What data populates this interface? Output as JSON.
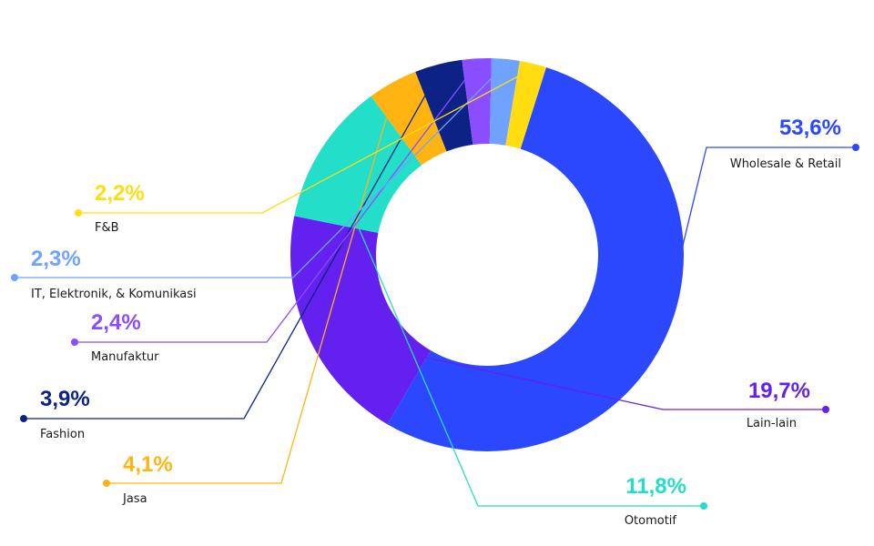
{
  "chart_data": {
    "type": "pie",
    "variant": "donut",
    "title": "",
    "slices": [
      {
        "label": "Wholesale & Retail",
        "value": 53.6,
        "value_label": "53,6%",
        "color": "#2b48ff"
      },
      {
        "label": "Lain-lain",
        "value": 19.7,
        "value_label": "19,7%",
        "color": "#6320ee"
      },
      {
        "label": "Otomotif",
        "value": 11.8,
        "value_label": "11,8%",
        "color": "#23dec8"
      },
      {
        "label": "Jasa",
        "value": 4.1,
        "value_label": "4,1%",
        "color": "#ffb412"
      },
      {
        "label": "Fashion",
        "value": 3.9,
        "value_label": "3,9%",
        "color": "#0d2285"
      },
      {
        "label": "Manufaktur",
        "value": 2.4,
        "value_label": "2,4%",
        "color": "#8a4dff"
      },
      {
        "label": "IT, Elektronik, & Komunikasi",
        "value": 2.3,
        "value_label": "2,3%",
        "color": "#70a2ff"
      },
      {
        "label": "F&B",
        "value": 2.2,
        "value_label": "2,2%",
        "color": "#ffdd10"
      }
    ]
  }
}
